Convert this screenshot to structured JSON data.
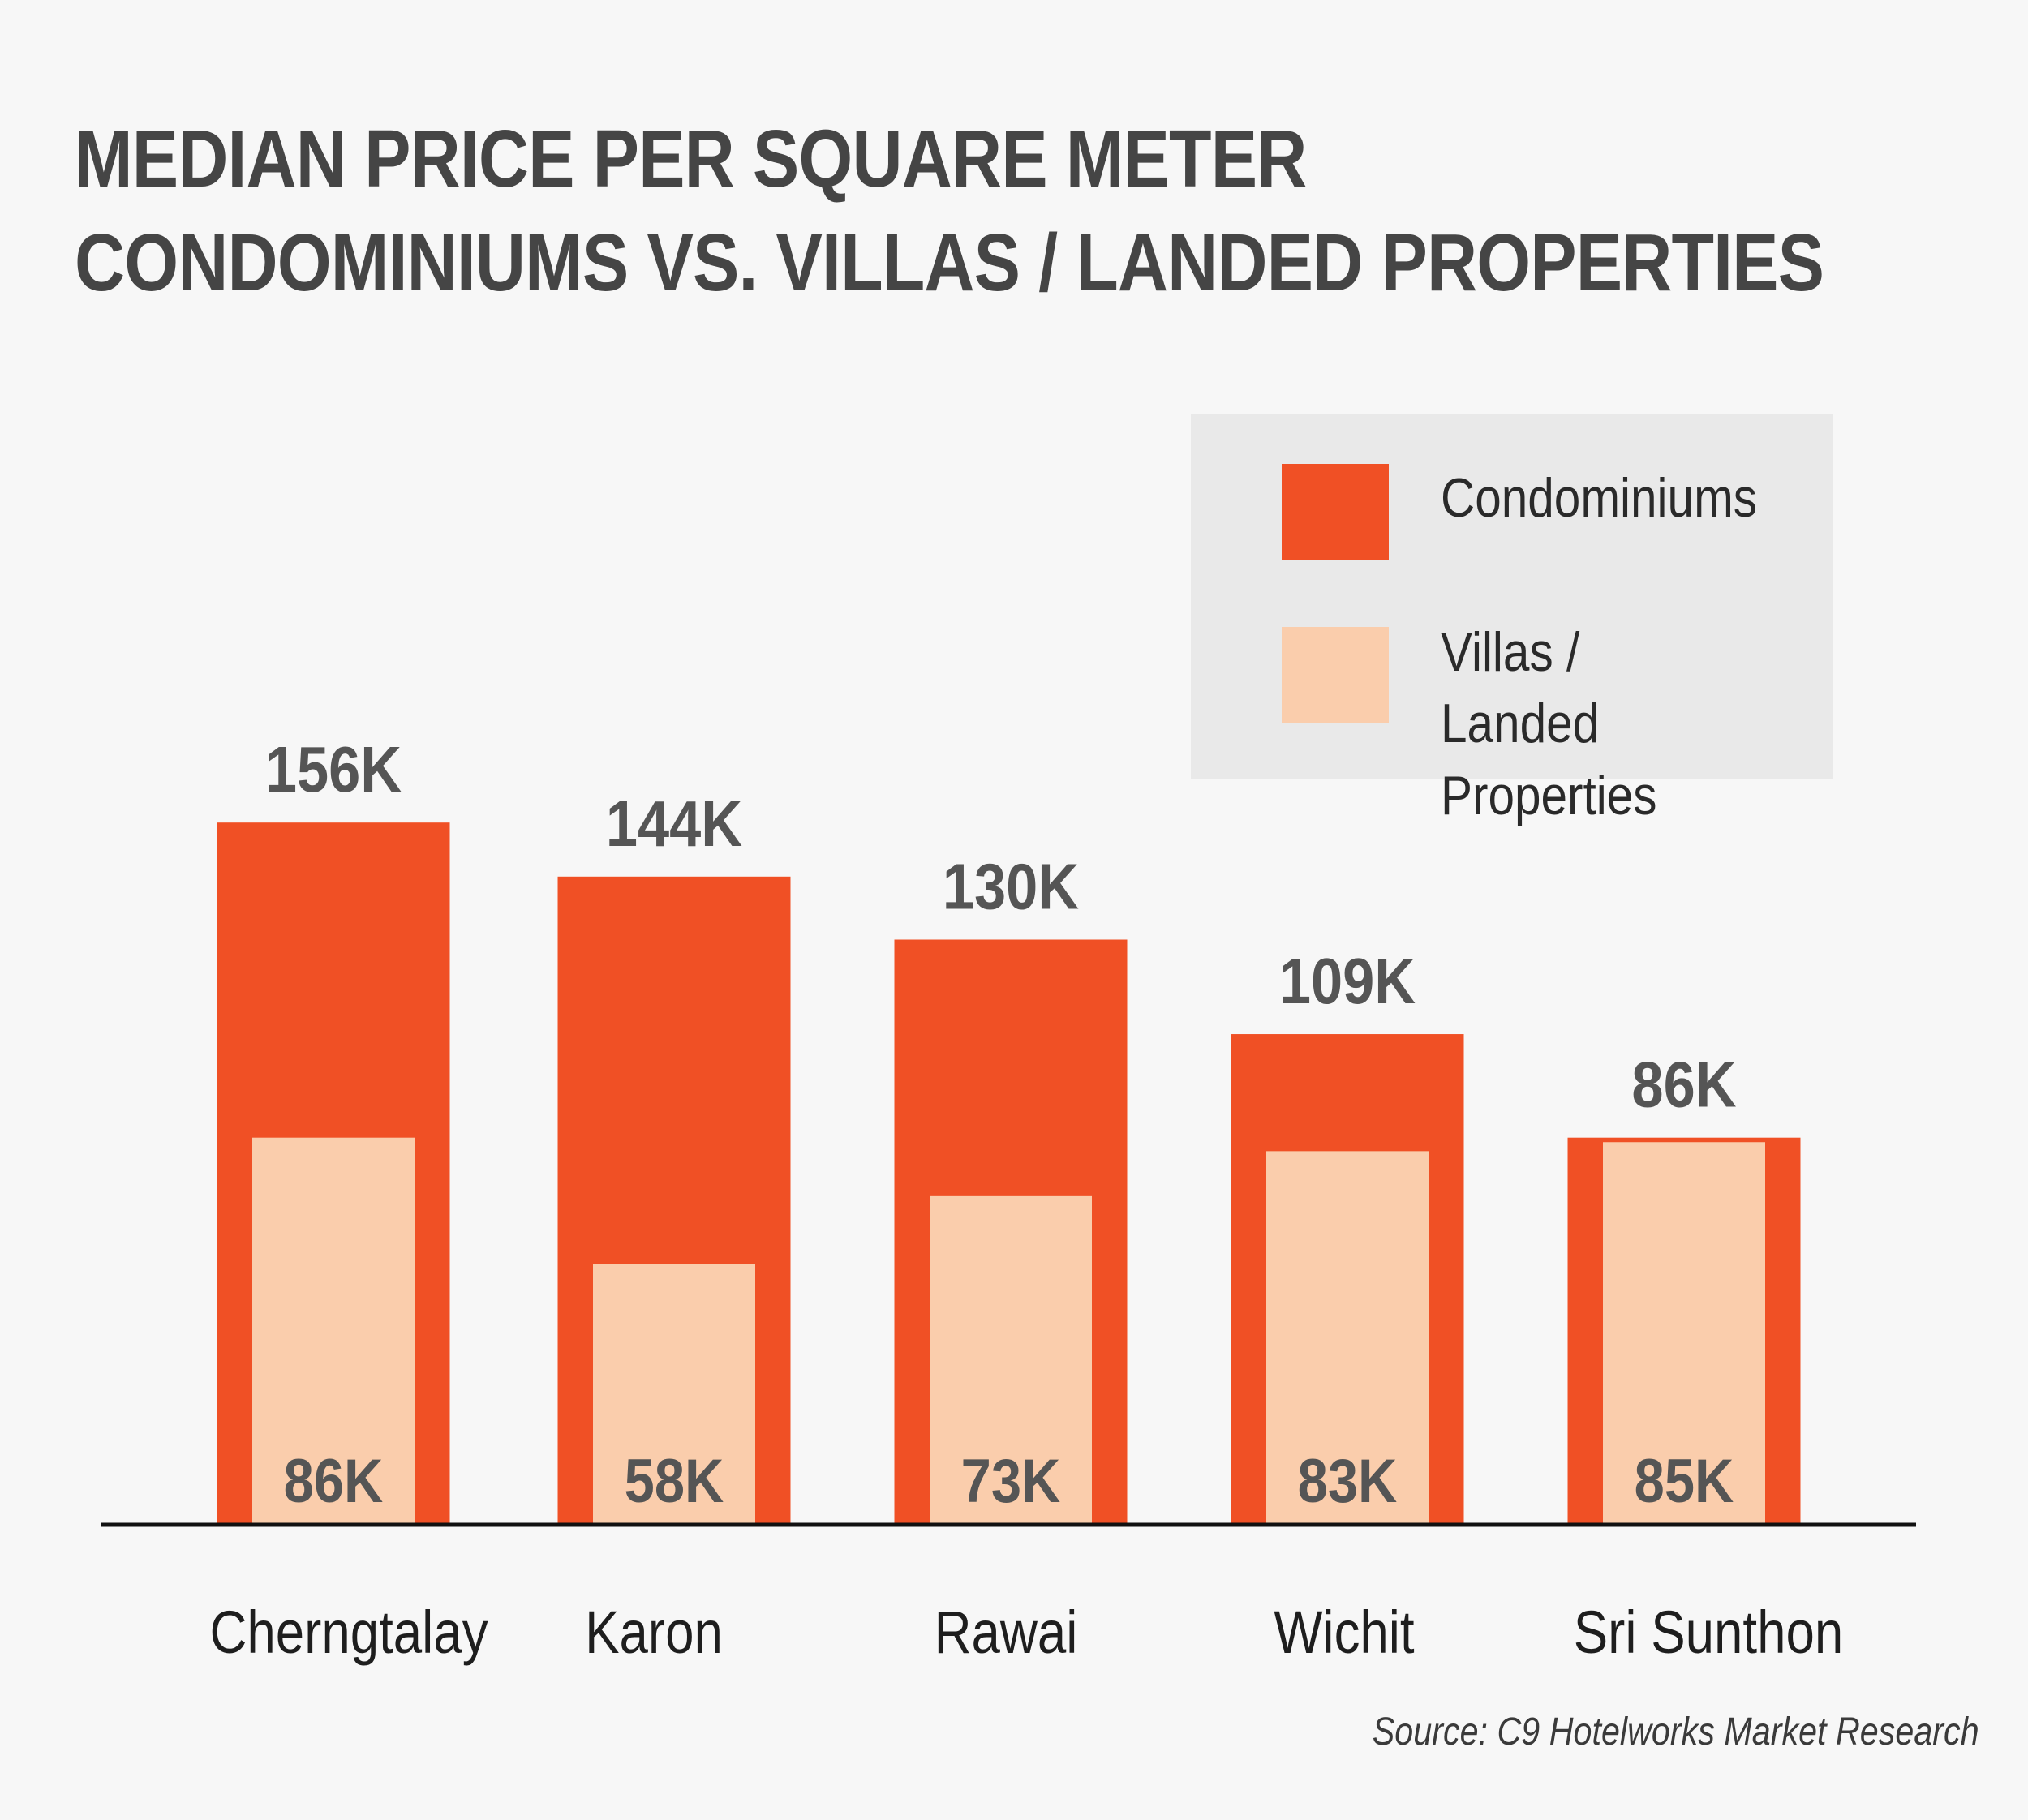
{
  "title": {
    "line1": "MEDIAN PRICE PER SQUARE METER",
    "line2": "CONDOMINIUMS VS. VILLAS / LANDED PROPERTIES"
  },
  "legend": {
    "condominiums": "Condominiums",
    "villas": "Villas / Landed Properties"
  },
  "colors": {
    "condominiums": "#f05025",
    "villas": "#facdac",
    "label_text": "#555555",
    "axis": "#111111"
  },
  "chart_data": {
    "type": "bar",
    "title": "MEDIAN PRICE PER SQUARE METER CONDOMINIUMS VS. VILLAS / LANDED PROPERTIES",
    "xlabel": "",
    "ylabel": "",
    "ylim": [
      0,
      175
    ],
    "grid": false,
    "legend_position": "top-right",
    "categories": [
      "Cherngtalay",
      "Karon",
      "Rawai",
      "Wichit",
      "Sri Sunthon"
    ],
    "series": [
      {
        "name": "Condominiums",
        "values": [
          156,
          144,
          130,
          109,
          86
        ],
        "labels": [
          "156K",
          "144K",
          "130K",
          "109K",
          "86K"
        ]
      },
      {
        "name": "Villas / Landed Properties",
        "values": [
          86,
          58,
          73,
          83,
          85
        ],
        "labels": [
          "86K",
          "58K",
          "73K",
          "83K",
          "85K"
        ]
      }
    ]
  },
  "source": "Source: C9 Hotelworks Market Research"
}
